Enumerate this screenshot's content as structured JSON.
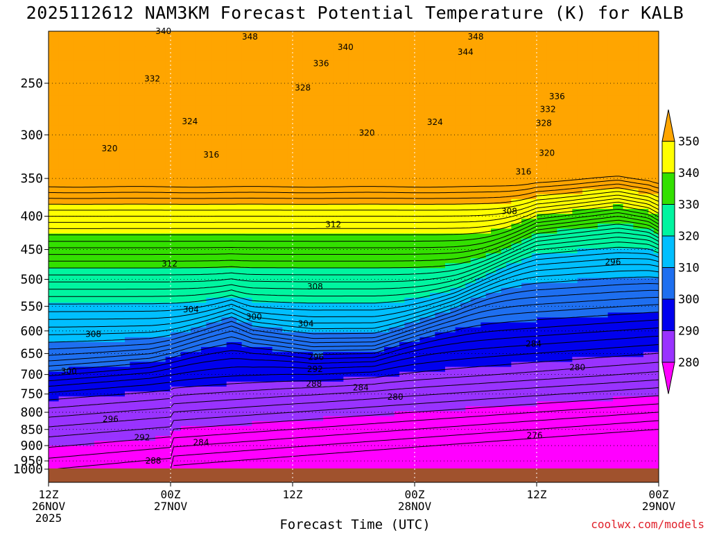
{
  "chart_data": {
    "type": "contour",
    "title": "2025112612 NAM3KM Forecast Potential Temperature (K) for KALB",
    "xlabel": "Forecast Time (UTC)",
    "ylabel": "",
    "credit": "coolwx.com/models",
    "x_ticks": [
      {
        "hour": 0,
        "lines": [
          "12Z",
          "26NOV",
          "2025"
        ]
      },
      {
        "hour": 12,
        "lines": [
          "00Z",
          "27NOV"
        ]
      },
      {
        "hour": 24,
        "lines": [
          "12Z"
        ]
      },
      {
        "hour": 36,
        "lines": [
          "00Z",
          "28NOV"
        ]
      },
      {
        "hour": 48,
        "lines": [
          "12Z"
        ]
      },
      {
        "hour": 60,
        "lines": [
          "00Z",
          "29NOV"
        ]
      }
    ],
    "xlim": [
      0,
      60
    ],
    "y_axis": "pressure (hPa), inverted, log scale",
    "ylim": [
      1000,
      200
    ],
    "y_ticks": [
      250,
      300,
      350,
      400,
      450,
      500,
      550,
      600,
      650,
      700,
      750,
      800,
      850,
      900,
      950,
      1000
    ],
    "colorbar": {
      "ticks": [
        280,
        290,
        300,
        310,
        320,
        330,
        340,
        350
      ],
      "bands": [
        {
          "from": 270,
          "to": 280,
          "color": "#ff00ff"
        },
        {
          "from": 280,
          "to": 290,
          "color": "#9933ff"
        },
        {
          "from": 290,
          "to": 300,
          "color": "#0000ee"
        },
        {
          "from": 300,
          "to": 310,
          "color": "#1e6ff0"
        },
        {
          "from": 310,
          "to": 320,
          "color": "#00bfff"
        },
        {
          "from": 320,
          "to": 330,
          "color": "#00f5a0"
        },
        {
          "from": 330,
          "to": 340,
          "color": "#33e000"
        },
        {
          "from": 340,
          "to": 350,
          "color": "#ffff00"
        },
        {
          "from": 350,
          "to": 360,
          "color": "#ffa500"
        }
      ]
    },
    "ground_color": "#a0522d",
    "contour_interval": 2,
    "contour_labels": [
      {
        "hour": 3.7,
        "p": 1000,
        "text": ""
      },
      {
        "hour": 11.3,
        "p": 208,
        "text": "340"
      },
      {
        "hour": 19.8,
        "p": 212,
        "text": "348"
      },
      {
        "hour": 29.2,
        "p": 220,
        "text": "340"
      },
      {
        "hour": 42.0,
        "p": 212,
        "text": "348"
      },
      {
        "hour": 41.0,
        "p": 224,
        "text": "344"
      },
      {
        "hour": 26.8,
        "p": 233,
        "text": "336"
      },
      {
        "hour": 10.2,
        "p": 246,
        "text": "332"
      },
      {
        "hour": 25.0,
        "p": 254,
        "text": "328"
      },
      {
        "hour": 50.0,
        "p": 262,
        "text": "336"
      },
      {
        "hour": 49.1,
        "p": 274,
        "text": "332"
      },
      {
        "hour": 48.7,
        "p": 288,
        "text": "328"
      },
      {
        "hour": 13.9,
        "p": 286,
        "text": "324"
      },
      {
        "hour": 38.0,
        "p": 287,
        "text": "324"
      },
      {
        "hour": 31.3,
        "p": 298,
        "text": "320"
      },
      {
        "hour": 6.0,
        "p": 315,
        "text": "320"
      },
      {
        "hour": 49.0,
        "p": 320,
        "text": "320"
      },
      {
        "hour": 16.0,
        "p": 322,
        "text": "316"
      },
      {
        "hour": 46.7,
        "p": 342,
        "text": "316"
      },
      {
        "hour": 28.0,
        "p": 412,
        "text": "312"
      },
      {
        "hour": 45.3,
        "p": 393,
        "text": "308"
      },
      {
        "hour": 11.9,
        "p": 473,
        "text": "312"
      },
      {
        "hour": 55.5,
        "p": 470,
        "text": "296"
      },
      {
        "hour": 26.2,
        "p": 513,
        "text": "308"
      },
      {
        "hour": 14.0,
        "p": 556,
        "text": "304"
      },
      {
        "hour": 20.2,
        "p": 571,
        "text": "300"
      },
      {
        "hour": 25.3,
        "p": 585,
        "text": "304"
      },
      {
        "hour": 4.4,
        "p": 607,
        "text": "308"
      },
      {
        "hour": 47.7,
        "p": 628,
        "text": "284"
      },
      {
        "hour": 26.3,
        "p": 658,
        "text": "296"
      },
      {
        "hour": 26.2,
        "p": 687,
        "text": "292"
      },
      {
        "hour": 52.0,
        "p": 683,
        "text": "280"
      },
      {
        "hour": 2.0,
        "p": 692,
        "text": "300"
      },
      {
        "hour": 26.1,
        "p": 723,
        "text": "288"
      },
      {
        "hour": 30.7,
        "p": 733,
        "text": "284"
      },
      {
        "hour": 34.1,
        "p": 758,
        "text": "280"
      },
      {
        "hour": 6.1,
        "p": 820,
        "text": "296"
      },
      {
        "hour": 9.2,
        "p": 875,
        "text": "292"
      },
      {
        "hour": 15.0,
        "p": 890,
        "text": "284"
      },
      {
        "hour": 47.8,
        "p": 868,
        "text": "276"
      },
      {
        "hour": 10.3,
        "p": 950,
        "text": "288"
      }
    ]
  }
}
